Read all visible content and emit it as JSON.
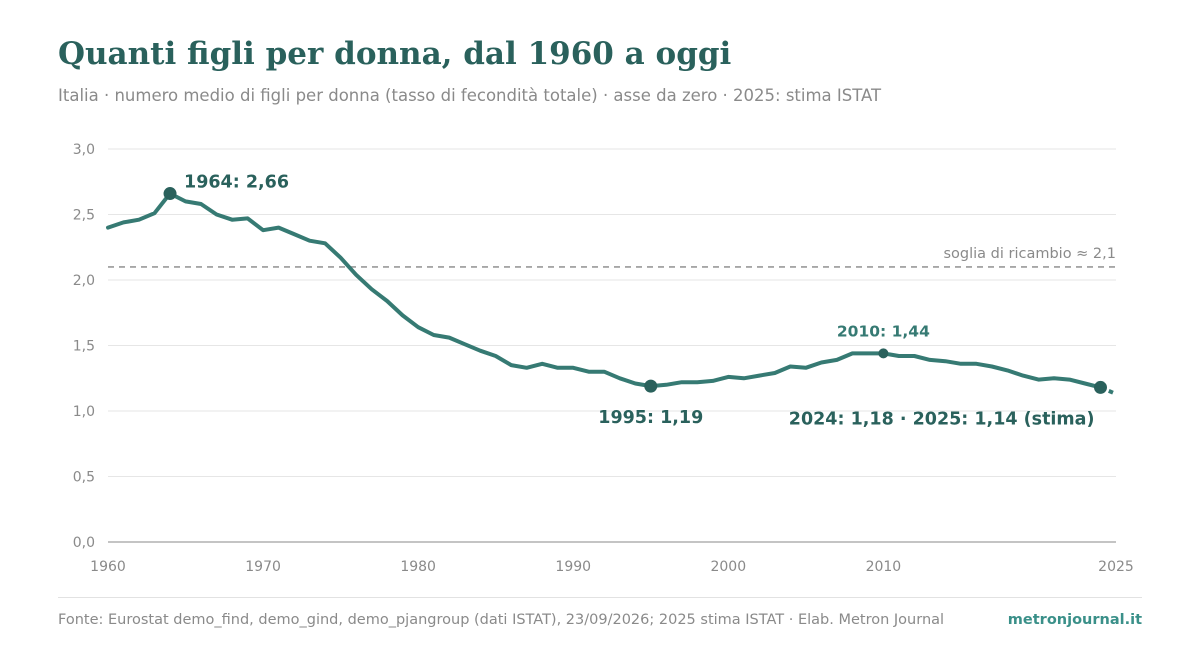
{
  "colors": {
    "title": "#2a615c",
    "line": "#367a73",
    "marker": "#2a615c",
    "annotation": "#2a615c",
    "annotation_light": "#367a73",
    "grid": "#e6e6e6",
    "axis": "#8a8a8a",
    "reference": "#999999",
    "brand": "#3a9089"
  },
  "header": {
    "title": "Quanti figli per donna, dal 1960 a oggi",
    "subtitle": "Italia · numero medio di figli per donna (tasso di fecondità totale) · asse da zero · 2025: stima ISTAT"
  },
  "footer": {
    "source": "Fonte: Eurostat demo_find, demo_gind, demo_pjangroup (dati ISTAT), 23/09/2026; 2025 stima ISTAT · Elab. Metron Journal",
    "brand": "metronjournal.it"
  },
  "chart_data": {
    "type": "line",
    "xlim": [
      1960,
      2025
    ],
    "ylim": [
      0,
      3.0
    ],
    "grid": true,
    "x_ticks": [
      1960,
      1970,
      1980,
      1990,
      2000,
      2010,
      2025
    ],
    "x_tick_labels": [
      "1960",
      "1970",
      "1980",
      "1990",
      "2000",
      "2010",
      "2025"
    ],
    "y_ticks": [
      0,
      0.5,
      1.0,
      1.5,
      2.0,
      2.5,
      3.0
    ],
    "y_tick_labels": [
      "0,0",
      "0,5",
      "1,0",
      "1,5",
      "2,0",
      "2,5",
      "3,0"
    ],
    "series": [
      {
        "x": [
          1960,
          1961,
          1962,
          1963,
          1964,
          1965,
          1966,
          1967,
          1968,
          1969,
          1970,
          1971,
          1972,
          1973,
          1974,
          1975,
          1976,
          1977,
          1978,
          1979,
          1980,
          1981,
          1982,
          1983,
          1984,
          1985,
          1986,
          1987,
          1988,
          1989,
          1990,
          1991,
          1992,
          1993,
          1994,
          1995,
          1996,
          1997,
          1998,
          1999,
          2000,
          2001,
          2002,
          2003,
          2004,
          2005,
          2006,
          2007,
          2008,
          2009,
          2010,
          2011,
          2012,
          2013,
          2014,
          2015,
          2016,
          2017,
          2018,
          2019,
          2020,
          2021,
          2022,
          2023,
          2024
        ],
        "values": [
          2.4,
          2.44,
          2.46,
          2.51,
          2.66,
          2.6,
          2.58,
          2.5,
          2.46,
          2.47,
          2.38,
          2.4,
          2.35,
          2.3,
          2.28,
          2.17,
          2.04,
          1.93,
          1.84,
          1.73,
          1.64,
          1.58,
          1.56,
          1.51,
          1.46,
          1.42,
          1.35,
          1.33,
          1.36,
          1.33,
          1.33,
          1.3,
          1.3,
          1.25,
          1.21,
          1.19,
          1.2,
          1.22,
          1.22,
          1.23,
          1.26,
          1.25,
          1.27,
          1.29,
          1.34,
          1.33,
          1.37,
          1.39,
          1.44,
          1.44,
          1.44,
          1.42,
          1.42,
          1.39,
          1.38,
          1.36,
          1.36,
          1.34,
          1.31,
          1.27,
          1.24,
          1.25,
          1.24,
          1.21,
          1.18
        ]
      }
    ],
    "estimate": {
      "x": [
        2024,
        2025
      ],
      "values": [
        1.18,
        1.14
      ]
    },
    "reference_line": {
      "value": 2.1,
      "label": "soglia di ricambio ≈ 2,1"
    },
    "annotations": [
      {
        "x": 1964,
        "y": 2.66,
        "label": "1964: 2,66",
        "style": "big",
        "position": "right-above"
      },
      {
        "x": 1995,
        "y": 1.19,
        "label": "1995: 1,19",
        "style": "big",
        "position": "below"
      },
      {
        "x": 2010,
        "y": 1.44,
        "label": "2010: 1,44",
        "style": "small",
        "position": "above"
      },
      {
        "x": 2024,
        "y": 1.18,
        "label": "2024: 1,18 · 2025: 1,14 (stima)",
        "style": "big",
        "position": "below-left"
      }
    ]
  }
}
